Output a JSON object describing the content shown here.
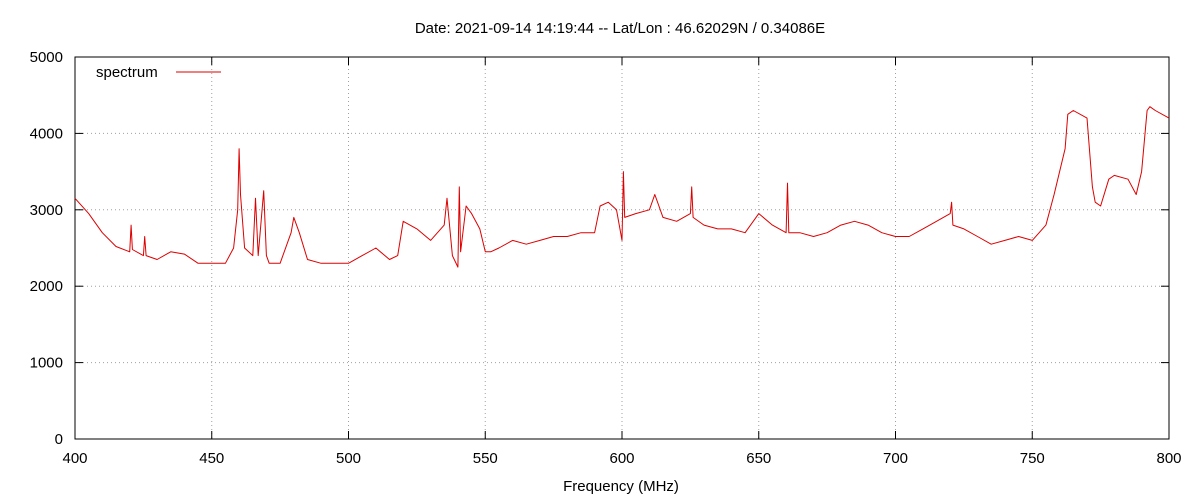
{
  "chart_data": {
    "type": "line",
    "title": "Date: 2021-09-14 14:19:44  --  Lat/Lon : 46.62029N / 0.34086E",
    "xlabel": "Frequency (MHz)",
    "ylabel": "",
    "xlim": [
      400,
      800
    ],
    "ylim": [
      0,
      5000
    ],
    "x_ticks": [
      400,
      450,
      500,
      550,
      600,
      650,
      700,
      750,
      800
    ],
    "y_ticks": [
      0,
      1000,
      2000,
      3000,
      4000,
      5000
    ],
    "grid": true,
    "legend_position": "top-left",
    "series": [
      {
        "name": "spectrum",
        "color": "#dd0000",
        "x": [
          400,
          405,
          410,
          415,
          420,
          420.5,
          421,
          425,
          425.5,
          426,
          430,
          435,
          440,
          445,
          450,
          455,
          458,
          459.5,
          460,
          460.5,
          462,
          465,
          466,
          467,
          469,
          470,
          471,
          475,
          479,
          480,
          482,
          485,
          490,
          495,
          500,
          505,
          510,
          515,
          518,
          520,
          525,
          530,
          535,
          536,
          538,
          540,
          540.5,
          541,
          543,
          545,
          548,
          550,
          552,
          555,
          560,
          565,
          570,
          575,
          580,
          585,
          590,
          592,
          595,
          598,
          600,
          600.5,
          601,
          605,
          610,
          612,
          615,
          620,
          625,
          625.5,
          626,
          630,
          635,
          640,
          645,
          650,
          655,
          660,
          660.5,
          661,
          665,
          670,
          675,
          680,
          685,
          690,
          695,
          700,
          705,
          710,
          715,
          720,
          720.5,
          721,
          725,
          730,
          735,
          740,
          745,
          750,
          755,
          758,
          762,
          763,
          765,
          770,
          772,
          773,
          775,
          778,
          780,
          785,
          788,
          790,
          792,
          793,
          795,
          800
        ],
        "values": [
          3150,
          2950,
          2700,
          2520,
          2450,
          2800,
          2480,
          2400,
          2650,
          2400,
          2350,
          2450,
          2420,
          2300,
          2300,
          2300,
          2500,
          3000,
          3800,
          3200,
          2500,
          2400,
          3150,
          2400,
          3250,
          2400,
          2300,
          2300,
          2700,
          2900,
          2700,
          2350,
          2300,
          2300,
          2300,
          2400,
          2500,
          2350,
          2400,
          2850,
          2750,
          2600,
          2800,
          3150,
          2400,
          2250,
          3300,
          2450,
          3050,
          2950,
          2750,
          2450,
          2450,
          2500,
          2600,
          2550,
          2600,
          2650,
          2650,
          2700,
          2700,
          3050,
          3100,
          3000,
          2600,
          3500,
          2900,
          2950,
          3000,
          3200,
          2900,
          2850,
          2950,
          3300,
          2900,
          2800,
          2750,
          2750,
          2700,
          2950,
          2800,
          2700,
          3350,
          2700,
          2700,
          2650,
          2700,
          2800,
          2850,
          2800,
          2700,
          2650,
          2650,
          2750,
          2850,
          2950,
          3100,
          2800,
          2750,
          2650,
          2550,
          2600,
          2650,
          2600,
          2800,
          3200,
          3800,
          4250,
          4300,
          4200,
          3300,
          3100,
          3050,
          3400,
          3450,
          3400,
          3200,
          3500,
          4300,
          4350,
          4300,
          4200
        ]
      }
    ]
  }
}
